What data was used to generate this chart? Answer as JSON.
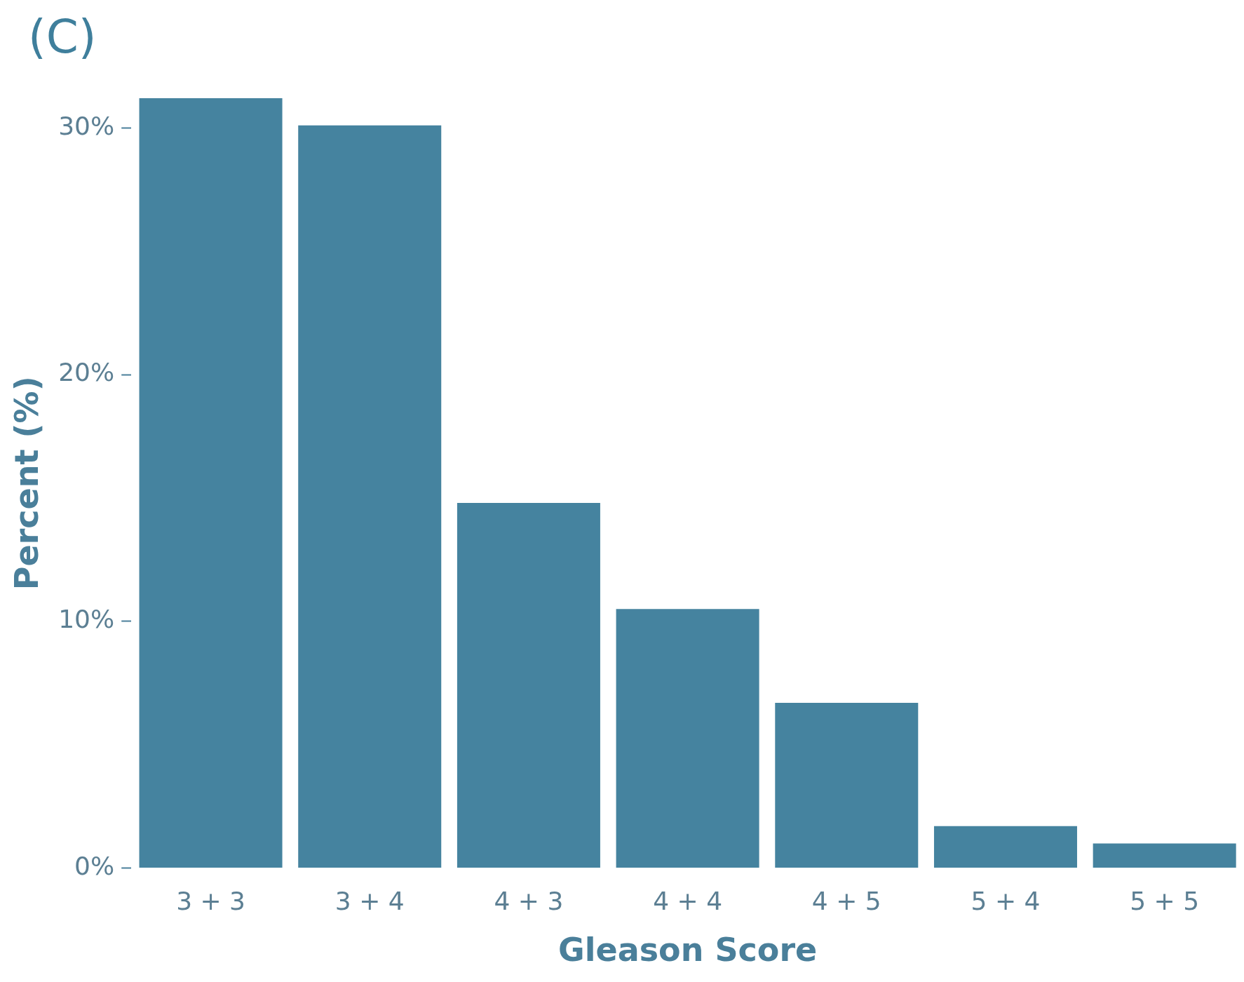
{
  "chart_data": {
    "type": "bar",
    "xlabel": "Gleason Score",
    "ylabel": "Percent (%)",
    "annotations": [
      "(C)"
    ],
    "categories": [
      "3 + 3",
      "3 + 4",
      "4 + 3",
      "4 + 4",
      "4 + 5",
      "5 + 4",
      "5 + 5"
    ],
    "values": [
      31.2,
      30.1,
      14.8,
      10.5,
      6.7,
      1.7,
      1.0
    ],
    "color": "#45839f",
    "ylim": [
      0,
      31.2
    ],
    "yticks": [
      {
        "value": 0,
        "label": "0%"
      },
      {
        "value": 10,
        "label": "10%"
      },
      {
        "value": 20,
        "label": "20%"
      },
      {
        "value": 30,
        "label": "30%"
      }
    ],
    "grid": false,
    "legend": false
  }
}
